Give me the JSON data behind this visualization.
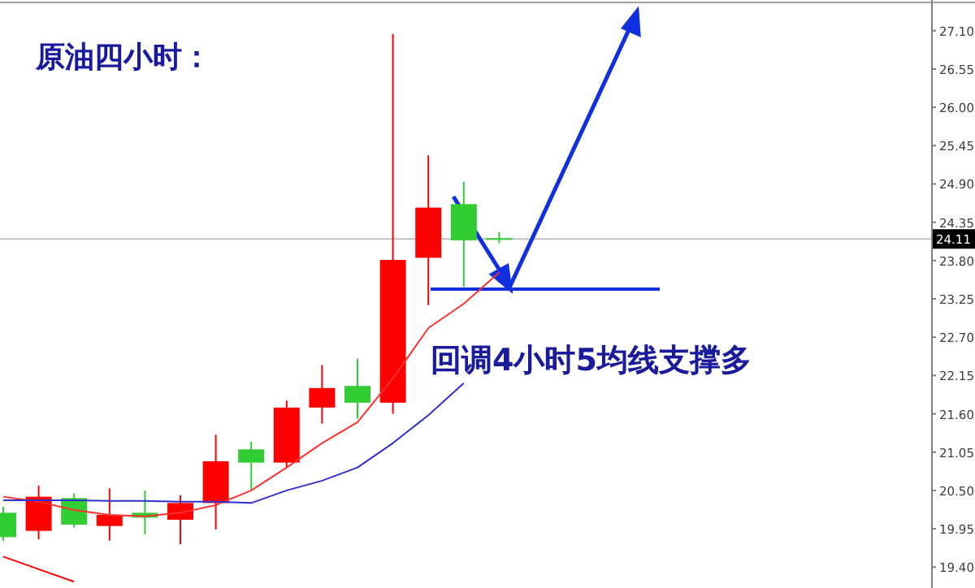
{
  "chart_data": {
    "type": "candlestick",
    "title": "原油四小时：",
    "annotations": [
      "回调4小时5均线支撑多"
    ],
    "categories": [
      null,
      null,
      null,
      null,
      null,
      null,
      null,
      null,
      null,
      null,
      null,
      null,
      null,
      null,
      null
    ],
    "ohlc": [
      [
        20.18,
        20.27,
        19.78,
        19.83
      ],
      [
        19.92,
        20.57,
        19.8,
        20.41
      ],
      [
        20.39,
        20.46,
        19.97,
        20.01
      ],
      [
        19.99,
        20.53,
        19.78,
        20.15
      ],
      [
        20.18,
        20.5,
        19.87,
        20.11
      ],
      [
        20.08,
        20.43,
        19.73,
        20.32
      ],
      [
        20.32,
        21.3,
        19.94,
        20.92
      ],
      [
        21.09,
        21.2,
        20.5,
        20.9
      ],
      [
        20.9,
        21.79,
        20.83,
        21.69
      ],
      [
        21.69,
        22.3,
        21.46,
        21.97
      ],
      [
        22.0,
        22.39,
        21.53,
        21.76
      ],
      [
        21.76,
        27.05,
        21.6,
        23.81
      ],
      [
        23.84,
        25.31,
        23.16,
        24.56
      ],
      [
        24.61,
        24.93,
        23.42,
        24.09
      ],
      [
        24.11,
        24.21,
        24.05,
        24.11
      ]
    ],
    "colors": [
      "#32cd32",
      "#ff0000",
      "#32cd32",
      "#ff0000",
      "#32cd32",
      "#ff0000",
      "#ff0000",
      "#32cd32",
      "#ff0000",
      "#ff0000",
      "#32cd32",
      "#ff0000",
      "#ff0000",
      "#32cd32",
      "#32cd32"
    ],
    "series": [
      {
        "type": "line",
        "color": "#ff3030",
        "values": [
          20.41,
          20.34,
          20.22,
          20.15,
          20.13,
          20.18,
          20.29,
          20.5,
          20.83,
          21.18,
          21.48,
          22.11,
          22.83,
          23.18,
          23.63
        ]
      },
      {
        "type": "line",
        "color": "#3030d0",
        "values": [
          20.36,
          20.36,
          20.36,
          20.35,
          20.35,
          20.34,
          20.34,
          20.32,
          20.5,
          20.64,
          20.83,
          21.18,
          21.58,
          22.04,
          null
        ]
      },
      {
        "type": "line",
        "color": "#ff0000",
        "values": [
          19.55,
          19.37,
          19.19,
          null,
          null,
          null,
          null,
          null,
          null,
          null,
          null,
          null,
          null,
          null,
          null
        ]
      }
    ],
    "ref_lines": [
      {
        "axis": "y",
        "value": 24.11,
        "label": "24.11",
        "color": "#c0c0c0"
      },
      {
        "axis": "y",
        "value": 23.39,
        "color": "#1030e0"
      }
    ],
    "ylim": [
      19.1,
      27.54
    ],
    "yticks": [
      {
        "value": 27.1,
        "label": "27.10"
      },
      {
        "value": 26.55,
        "label": "26.55"
      },
      {
        "value": 26.0,
        "label": "26.00"
      },
      {
        "value": 25.45,
        "label": "25.45"
      },
      {
        "value": 24.9,
        "label": "24.90"
      },
      {
        "value": 24.35,
        "label": "24.35"
      },
      {
        "value": 23.8,
        "label": "23.80"
      },
      {
        "value": 23.25,
        "label": "23.25"
      },
      {
        "value": 22.7,
        "label": "22.70"
      },
      {
        "value": 22.15,
        "label": "22.15"
      },
      {
        "value": 21.6,
        "label": "21.60"
      },
      {
        "value": 21.05,
        "label": "21.05"
      },
      {
        "value": 20.5,
        "label": "20.50"
      },
      {
        "value": 19.95,
        "label": "19.95"
      },
      {
        "value": 19.4,
        "label": "19.40"
      }
    ],
    "tick_labels": "y"
  }
}
